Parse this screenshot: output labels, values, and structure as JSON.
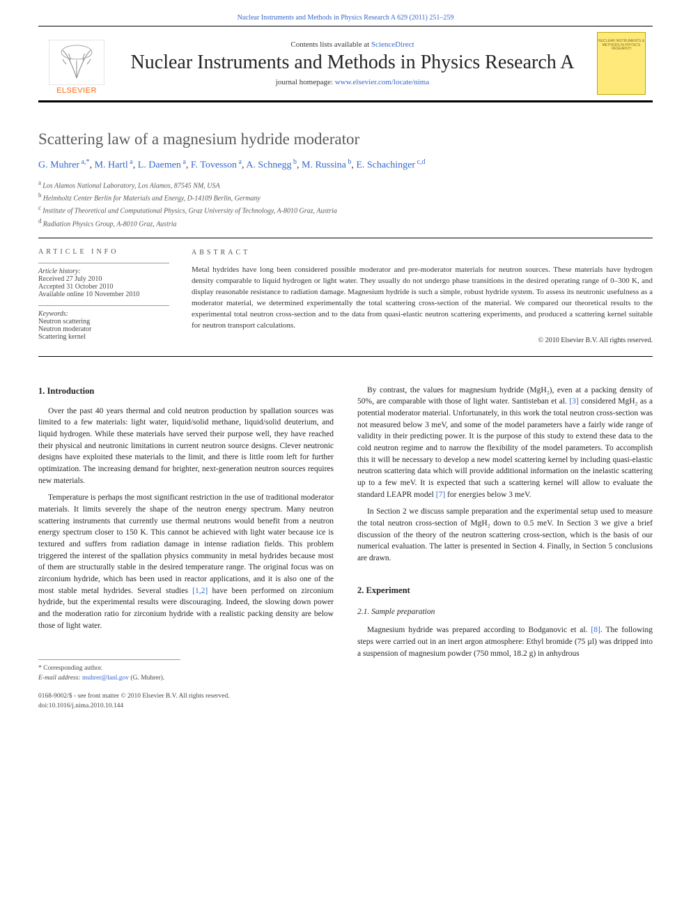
{
  "header": {
    "citation_prefix": "Nuclear Instruments and Methods in Physics Research A 629 (2011) 251–259"
  },
  "masthead": {
    "contents_prefix": "Contents lists available at ",
    "contents_link": "ScienceDirect",
    "journal_title": "Nuclear Instruments and Methods in Physics Research A",
    "homepage_prefix": "journal homepage: ",
    "homepage_link": "www.elsevier.com/locate/nima",
    "cover_text": "NUCLEAR INSTRUMENTS & METHODS IN PHYSICS RESEARCH",
    "elsevier_label": "ELSEVIER"
  },
  "article": {
    "title": "Scattering law of a magnesium hydride moderator",
    "authors_html": "G. Muhrer",
    "authors": [
      {
        "name": "G. Muhrer",
        "sup": "a,*"
      },
      {
        "name": "M. Hartl",
        "sup": "a"
      },
      {
        "name": "L. Daemen",
        "sup": "a"
      },
      {
        "name": "F. Tovesson",
        "sup": "a"
      },
      {
        "name": "A. Schnegg",
        "sup": "b"
      },
      {
        "name": "M. Russina",
        "sup": "b"
      },
      {
        "name": "E. Schachinger",
        "sup": "c,d"
      }
    ],
    "affiliations": [
      {
        "sup": "a",
        "text": "Los Alamos National Laboratory, Los Alamos, 87545 NM, USA"
      },
      {
        "sup": "b",
        "text": "Helmholtz Center Berlin for Materials and Energy, D-14109 Berlin, Germany"
      },
      {
        "sup": "c",
        "text": "Institute of Theoretical and Computational Physics, Graz University of Technology, A-8010 Graz, Austria"
      },
      {
        "sup": "d",
        "text": "Radiation Physics Group, A-8010 Graz, Austria"
      }
    ],
    "info_heading": "article info",
    "abstract_heading": "abstract",
    "history_label": "Article history:",
    "history": [
      "Received 27 July 2010",
      "Accepted 31 October 2010",
      "Available online 10 November 2010"
    ],
    "keywords_label": "Keywords:",
    "keywords": [
      "Neutron scattering",
      "Neutron moderator",
      "Scattering kernel"
    ],
    "abstract_text": "Metal hydrides have long been considered possible moderator and pre-moderator materials for neutron sources. These materials have hydrogen density comparable to liquid hydrogen or light water. They usually do not undergo phase transitions in the desired operating range of 0–300 K, and display reasonable resistance to radiation damage. Magnesium hydride is such a simple, robust hydride system. To assess its neutronic usefulness as a moderator material, we determined experimentally the total scattering cross-section of the material. We compared our theoretical results to the experimental total neutron cross-section and to the data from quasi-elastic neutron scattering experiments, and produced a scattering kernel suitable for neutron transport calculations.",
    "copyright": "© 2010 Elsevier B.V. All rights reserved."
  },
  "body": {
    "introduction_heading": "1. Introduction",
    "intro_p1": "Over the past 40 years thermal and cold neutron production by spallation sources was limited to a few materials: light water, liquid/solid methane, liquid/solid deuterium, and liquid hydrogen. While these materials have served their purpose well, they have reached their physical and neutronic limitations in current neutron source designs. Clever neutronic designs have exploited these materials to the limit, and there is little room left for further optimization. The increasing demand for brighter, next-generation neutron sources requires new materials.",
    "intro_p2": "Temperature is perhaps the most significant restriction in the use of traditional moderator materials. It limits severely the shape of the neutron energy spectrum. Many neutron scattering instruments that currently use thermal neutrons would benefit from a neutron energy spectrum closer to 150 K. This cannot be achieved with light water because ice is textured and suffers from radiation damage in intense radiation fields. This problem triggered the interest of the spallation physics community in metal hydrides because most of them are structurally stable in the desired temperature range. The original focus was on zirconium hydride, which has been used in reactor applications, and it is also one of the most stable metal hydrides. Several studies ",
    "intro_p2_ref": "[1,2]",
    "intro_p2_cont": " have been performed on zirconium hydride, but the experimental results were discouraging. Indeed, the slowing down power and the moderation ratio for zirconium hydride with a realistic packing density are below those of light water.",
    "col2_p1a": "By contrast, the values for magnesium hydride (MgH₂), even at a packing density of 50%, are comparable with those of light water. Santisteban et al. ",
    "col2_p1_ref": "[3]",
    "col2_p1b": " considered MgH₂ as a potential moderator material. Unfortunately, in this work the total neutron cross-section was not measured below 3 meV, and some of the model parameters have a fairly wide range of validity in their predicting power. It is the purpose of this study to extend these data to the cold neutron regime and to narrow the flexibility of the model parameters. To accomplish this it will be necessary to develop a new model scattering kernel by including quasi-elastic neutron scattering data which will provide additional information on the inelastic scattering up to a few meV. It is expected that such a scattering kernel will allow to evaluate the standard LEAPR model ",
    "col2_p1_ref2": "[7]",
    "col2_p1c": " for energies below 3 meV.",
    "col2_p2": "In Section 2 we discuss sample preparation and the experimental setup used to measure the total neutron cross-section of MgH₂ down to 0.5 meV. In Section 3 we give a brief discussion of the theory of the neutron scattering cross-section, which is the basis of our numerical evaluation. The latter is presented in Section 4. Finally, in Section 5 conclusions are drawn.",
    "experiment_heading": "2. Experiment",
    "sample_prep_heading": "2.1. Sample preparation",
    "sample_p1a": "Magnesium hydride was prepared according to Bodganovic et al. ",
    "sample_ref": "[8]",
    "sample_p1b": ". The following steps were carried out in an inert argon atmosphere: Ethyl bromide (75 µl) was dripped into a suspension of magnesium powder (750 mmol, 18.2 g) in anhydrous"
  },
  "footnote": {
    "corresponding": "* Corresponding author.",
    "email_label": "E-mail address: ",
    "email": "muhrer@lanl.gov",
    "email_name": " (G. Muhrer)."
  },
  "footer": {
    "issn": "0168-9002/$ - see front matter © 2010 Elsevier B.V. All rights reserved.",
    "doi": "doi:10.1016/j.nima.2010.10.144"
  },
  "colors": {
    "link": "#3366cc",
    "elsevier_orange": "#ff6600",
    "cover_bg": "#ffe97a",
    "text": "#232323"
  }
}
